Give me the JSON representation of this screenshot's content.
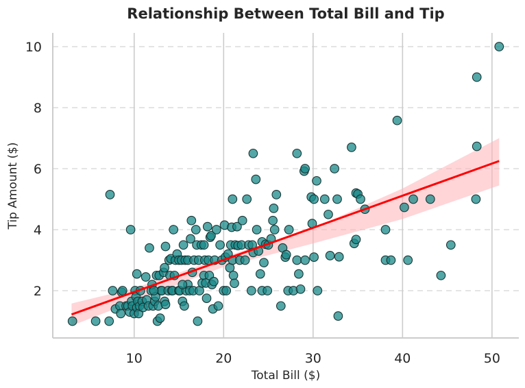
{
  "chart_data": {
    "type": "scatter",
    "title": "Relationship Between Total Bill and Tip",
    "xlabel": "Total Bill ($)",
    "ylabel": "Tip Amount ($)",
    "xlim": [
      0.9,
      53.0
    ],
    "ylim": [
      0.45,
      10.45
    ],
    "xticks": [
      10,
      20,
      30,
      40,
      50
    ],
    "yticks": [
      2,
      4,
      6,
      8,
      10
    ],
    "grid": {
      "x": "solid",
      "y": "dashed"
    },
    "colors": {
      "point_fill": "#1a8a8a",
      "point_edge": "#1a3333",
      "regression_line": "#ff0000",
      "confidence_band": "#ffb3b8",
      "grid": "#cccccc",
      "axis": "#cccccc"
    },
    "regression": {
      "x": [
        3.0,
        50.8
      ],
      "y": [
        1.22,
        6.25
      ]
    },
    "confidence_band": {
      "x": [
        3.0,
        10.0,
        20.0,
        30.0,
        40.0,
        50.8
      ],
      "upper": [
        1.58,
        2.08,
        3.1,
        4.05,
        5.35,
        7.0
      ],
      "lower": [
        0.85,
        1.65,
        2.78,
        3.55,
        4.35,
        5.45
      ]
    },
    "points": [
      [
        3.1,
        1.0
      ],
      [
        5.7,
        1.0
      ],
      [
        7.2,
        1.0
      ],
      [
        7.3,
        5.15
      ],
      [
        7.6,
        2.0
      ],
      [
        7.9,
        1.4
      ],
      [
        8.4,
        1.5
      ],
      [
        8.5,
        1.25
      ],
      [
        8.6,
        1.95
      ],
      [
        8.7,
        2.0
      ],
      [
        9.1,
        1.5
      ],
      [
        9.3,
        1.5
      ],
      [
        9.5,
        1.3
      ],
      [
        9.6,
        4.0
      ],
      [
        9.7,
        1.65
      ],
      [
        9.8,
        1.5
      ],
      [
        10.0,
        1.25
      ],
      [
        10.1,
        2.0
      ],
      [
        10.2,
        1.8
      ],
      [
        10.3,
        2.55
      ],
      [
        10.3,
        1.45
      ],
      [
        10.4,
        1.65
      ],
      [
        10.5,
        1.25
      ],
      [
        10.6,
        1.5
      ],
      [
        10.7,
        2.0
      ],
      [
        10.9,
        1.65
      ],
      [
        11.0,
        1.45
      ],
      [
        11.3,
        2.45
      ],
      [
        11.4,
        1.7
      ],
      [
        11.6,
        1.5
      ],
      [
        11.7,
        3.4
      ],
      [
        11.9,
        2.0
      ],
      [
        12.0,
        2.2
      ],
      [
        12.1,
        1.5
      ],
      [
        12.3,
        1.65
      ],
      [
        12.4,
        1.8
      ],
      [
        12.5,
        2.5
      ],
      [
        12.6,
        1.0
      ],
      [
        12.7,
        1.5
      ],
      [
        12.8,
        2.5
      ],
      [
        12.9,
        1.1
      ],
      [
        13.0,
        2.0
      ],
      [
        13.1,
        2.0
      ],
      [
        13.3,
        2.6
      ],
      [
        13.4,
        1.65
      ],
      [
        13.4,
        2.75
      ],
      [
        13.5,
        3.45
      ],
      [
        13.5,
        1.55
      ],
      [
        13.8,
        2.0
      ],
      [
        13.9,
        3.0
      ],
      [
        14.0,
        2.5
      ],
      [
        14.1,
        3.05
      ],
      [
        14.2,
        2.0
      ],
      [
        14.3,
        2.0
      ],
      [
        14.4,
        4.0
      ],
      [
        14.5,
        2.5
      ],
      [
        14.6,
        3.0
      ],
      [
        14.8,
        3.2
      ],
      [
        15.0,
        2.0
      ],
      [
        15.0,
        3.0
      ],
      [
        15.1,
        2.0
      ],
      [
        15.3,
        3.0
      ],
      [
        15.4,
        1.65
      ],
      [
        15.5,
        3.5
      ],
      [
        15.6,
        1.5
      ],
      [
        15.7,
        3.0
      ],
      [
        15.8,
        2.0
      ],
      [
        16.0,
        3.0
      ],
      [
        16.0,
        2.2
      ],
      [
        16.2,
        2.0
      ],
      [
        16.3,
        3.7
      ],
      [
        16.4,
        4.3
      ],
      [
        16.5,
        2.6
      ],
      [
        16.6,
        2.0
      ],
      [
        16.7,
        3.0
      ],
      [
        16.9,
        4.0
      ],
      [
        17.0,
        3.5
      ],
      [
        17.1,
        1.0
      ],
      [
        17.2,
        3.0
      ],
      [
        17.3,
        2.0
      ],
      [
        17.5,
        3.5
      ],
      [
        17.6,
        2.25
      ],
      [
        17.8,
        3.5
      ],
      [
        17.8,
        2.5
      ],
      [
        17.9,
        3.0
      ],
      [
        18.0,
        2.25
      ],
      [
        18.1,
        1.75
      ],
      [
        18.2,
        4.1
      ],
      [
        18.3,
        3.0
      ],
      [
        18.4,
        2.5
      ],
      [
        18.5,
        3.75
      ],
      [
        18.6,
        3.8
      ],
      [
        18.7,
        2.2
      ],
      [
        18.8,
        1.4
      ],
      [
        18.9,
        2.3
      ],
      [
        19.0,
        3.0
      ],
      [
        19.2,
        4.0
      ],
      [
        19.4,
        1.5
      ],
      [
        19.6,
        3.5
      ],
      [
        19.8,
        3.0
      ],
      [
        20.0,
        2.0
      ],
      [
        20.1,
        4.15
      ],
      [
        20.2,
        3.1
      ],
      [
        20.3,
        2.0
      ],
      [
        20.5,
        3.2
      ],
      [
        20.7,
        2.75
      ],
      [
        20.8,
        3.5
      ],
      [
        20.9,
        4.08
      ],
      [
        21.0,
        3.0
      ],
      [
        21.0,
        5.0
      ],
      [
        21.1,
        2.5
      ],
      [
        21.2,
        2.24
      ],
      [
        21.3,
        3.5
      ],
      [
        21.5,
        4.1
      ],
      [
        21.6,
        3.48
      ],
      [
        21.8,
        3.0
      ],
      [
        22.0,
        3.5
      ],
      [
        22.1,
        4.3
      ],
      [
        22.4,
        3.0
      ],
      [
        22.6,
        5.0
      ],
      [
        22.8,
        3.5
      ],
      [
        23.1,
        2.0
      ],
      [
        23.2,
        3.5
      ],
      [
        23.3,
        3.25
      ],
      [
        23.6,
        5.65
      ],
      [
        23.7,
        4.0
      ],
      [
        23.9,
        3.3
      ],
      [
        24.1,
        2.55
      ],
      [
        24.3,
        2.0
      ],
      [
        24.3,
        3.6
      ],
      [
        24.5,
        2.92
      ],
      [
        24.7,
        3.52
      ],
      [
        24.9,
        2.0
      ],
      [
        25.0,
        3.5
      ],
      [
        25.3,
        3.7
      ],
      [
        25.5,
        4.3
      ],
      [
        25.6,
        4.7
      ],
      [
        25.7,
        4.0
      ],
      [
        25.9,
        5.15
      ],
      [
        26.4,
        1.5
      ],
      [
        26.6,
        3.4
      ],
      [
        26.9,
        3.1
      ],
      [
        27.0,
        3.18
      ],
      [
        27.2,
        2.0
      ],
      [
        27.3,
        4.0
      ],
      [
        27.8,
        2.0
      ],
      [
        28.2,
        3.0
      ],
      [
        28.4,
        2.55
      ],
      [
        28.6,
        2.05
      ],
      [
        29.0,
        5.92
      ],
      [
        29.1,
        3.0
      ],
      [
        29.8,
        5.07
      ],
      [
        29.9,
        4.2
      ],
      [
        30.1,
        3.1
      ],
      [
        30.4,
        5.6
      ],
      [
        30.5,
        2.0
      ],
      [
        31.3,
        5.0
      ],
      [
        31.7,
        4.5
      ],
      [
        31.9,
        3.15
      ],
      [
        32.4,
        6.0
      ],
      [
        32.7,
        5.0
      ],
      [
        32.8,
        1.17
      ],
      [
        32.9,
        3.11
      ],
      [
        34.3,
        6.7
      ],
      [
        34.6,
        3.55
      ],
      [
        34.8,
        3.68
      ],
      [
        34.8,
        5.2
      ],
      [
        35.0,
        5.17
      ],
      [
        35.3,
        5.0
      ],
      [
        35.8,
        4.67
      ],
      [
        38.1,
        3.0
      ],
      [
        38.1,
        4.0
      ],
      [
        38.7,
        3.0
      ],
      [
        39.4,
        7.58
      ],
      [
        40.2,
        4.73
      ],
      [
        40.6,
        3.0
      ],
      [
        41.2,
        5.0
      ],
      [
        43.1,
        5.0
      ],
      [
        44.3,
        2.5
      ],
      [
        45.4,
        3.5
      ],
      [
        48.2,
        5.0
      ],
      [
        48.3,
        6.73
      ],
      [
        48.3,
        9.0
      ],
      [
        50.8,
        10.0
      ],
      [
        23.3,
        6.5
      ],
      [
        28.2,
        6.5
      ],
      [
        29.1,
        6.0
      ],
      [
        30.1,
        5.0
      ],
      [
        12.2,
        2.0
      ],
      [
        15.4,
        2.2
      ]
    ]
  }
}
